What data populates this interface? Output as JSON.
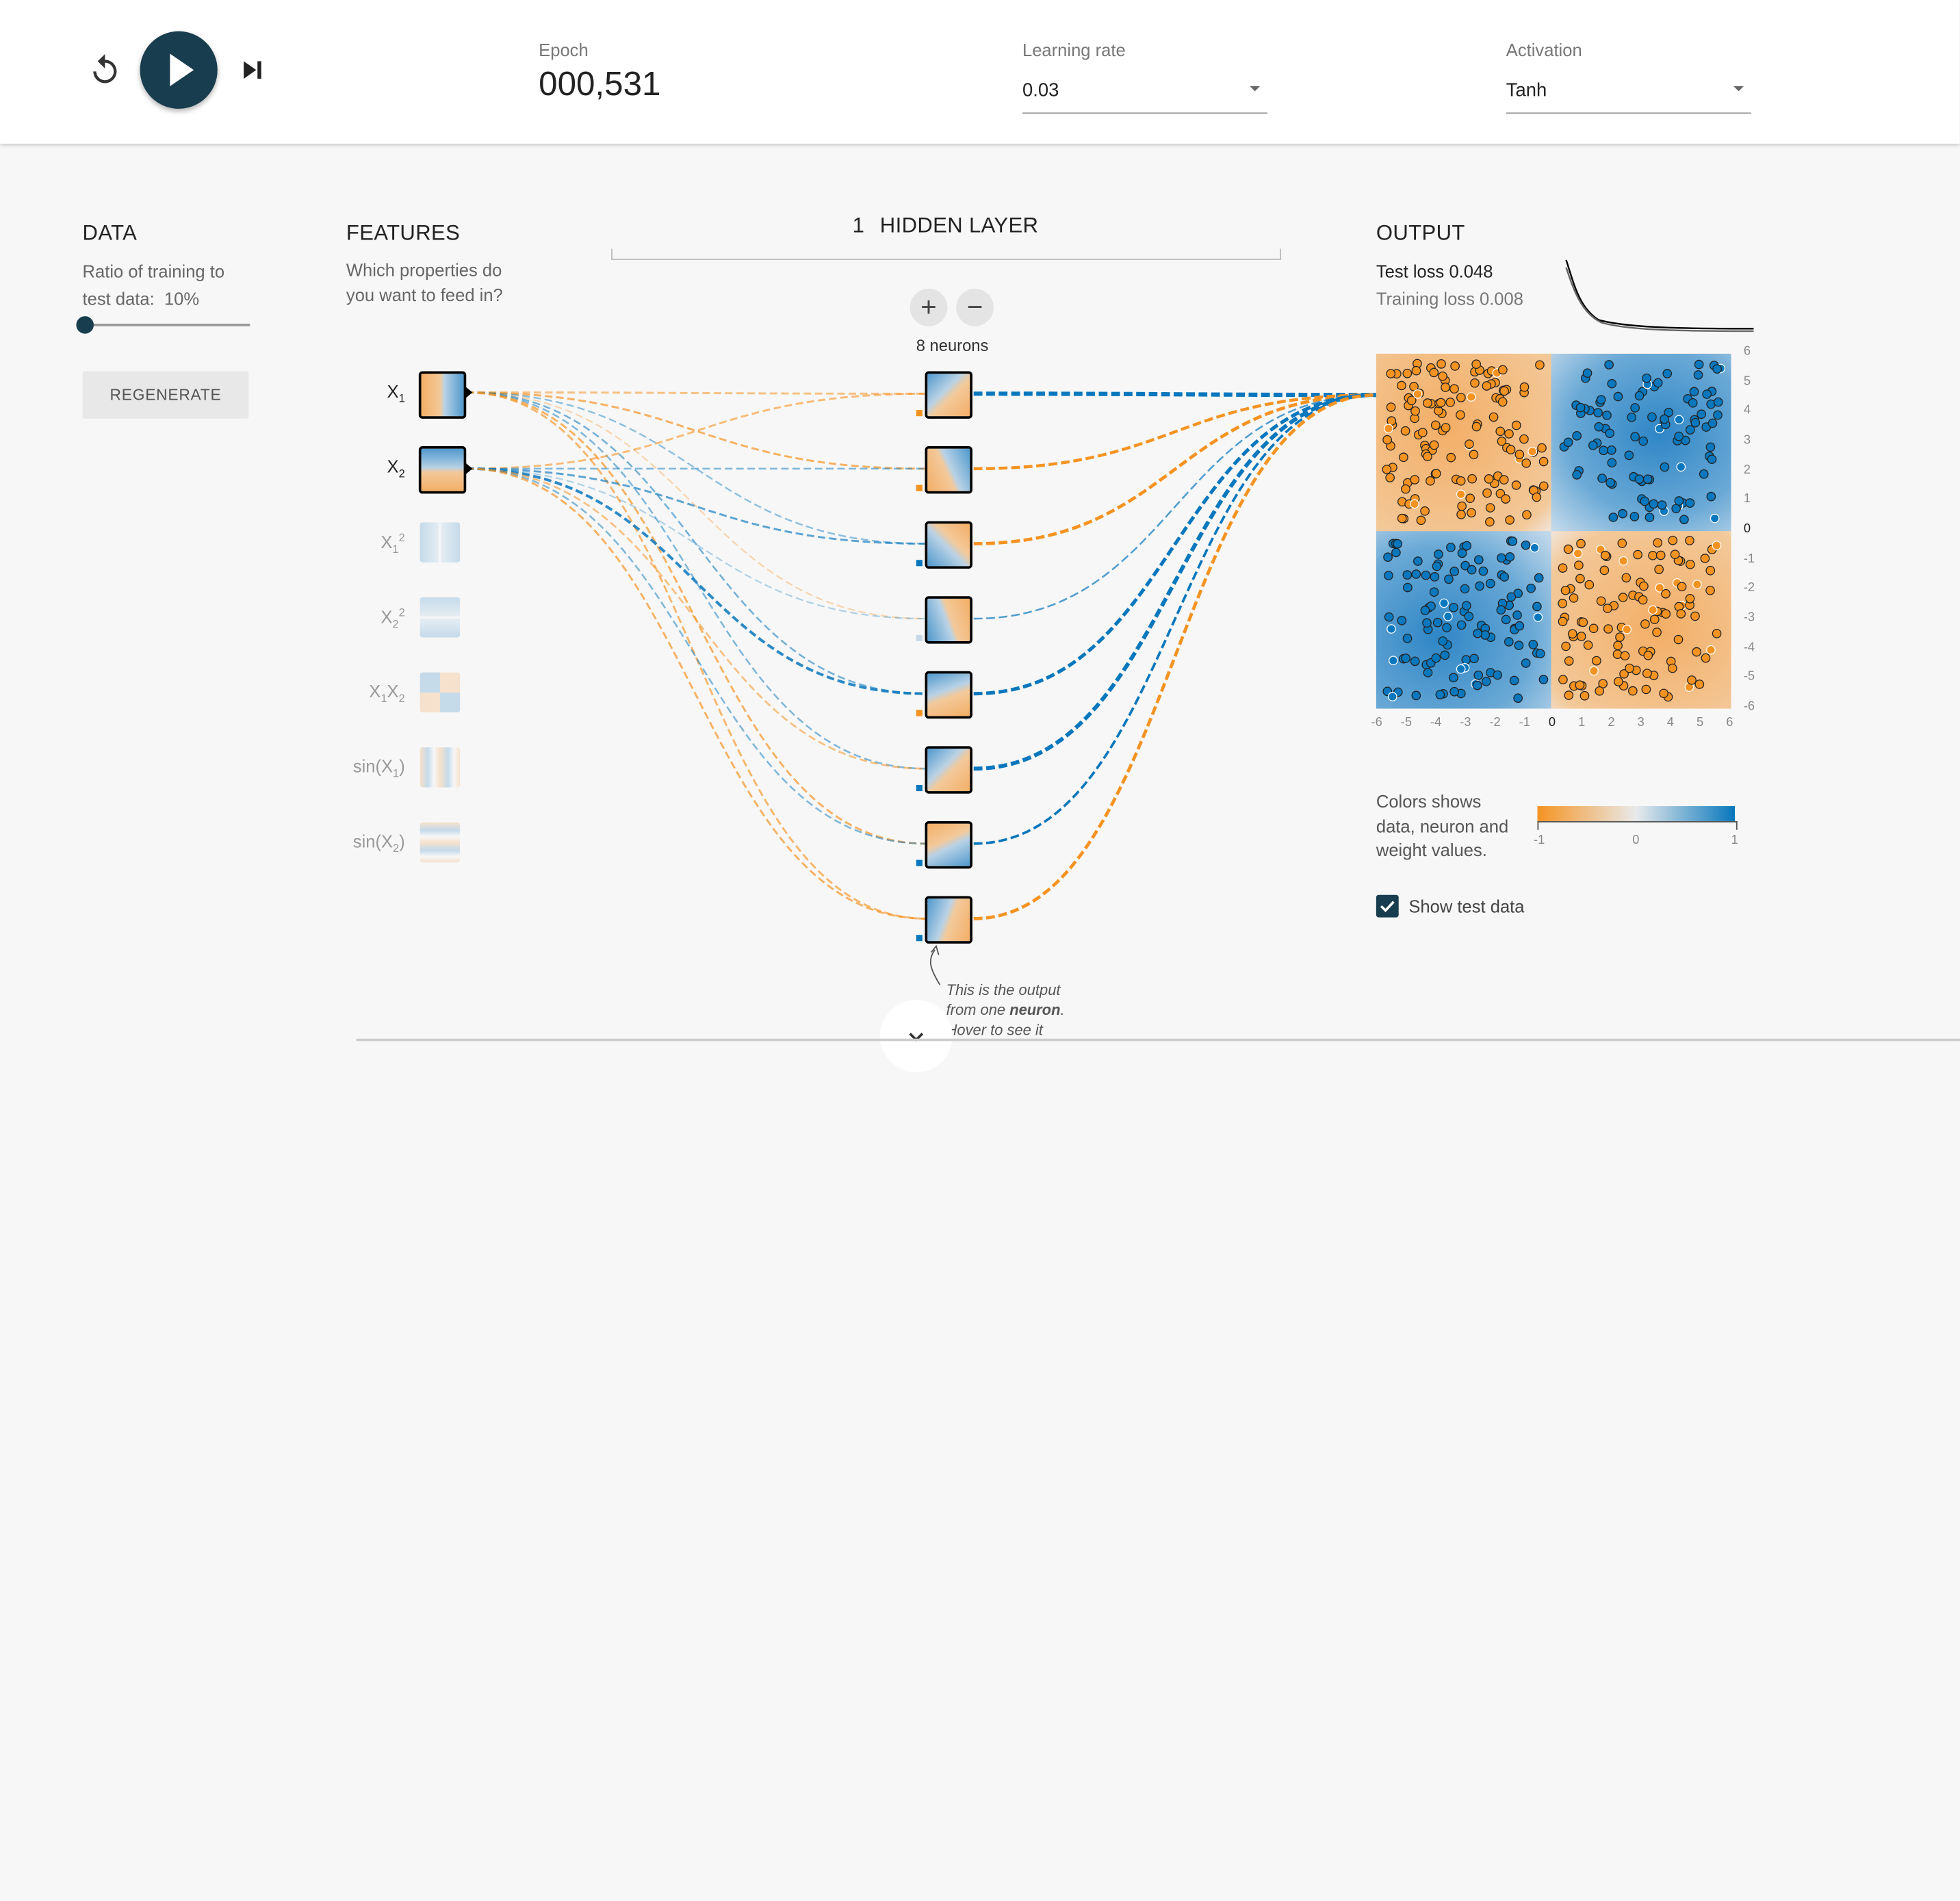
{
  "controls": {
    "reset_icon": "reset-icon",
    "play_icon": "play-icon",
    "step_icon": "step-icon",
    "epoch_label": "Epoch",
    "epoch_value": "000,531",
    "learning_rate_label": "Learning rate",
    "learning_rate_value": "0.03",
    "activation_label": "Activation",
    "activation_value": "Tanh"
  },
  "data_section": {
    "title": "DATA",
    "ratio_line1": "Ratio of training to",
    "ratio_line2": "test data:  10%",
    "ratio_value": 0.1,
    "regenerate_label": "REGENERATE"
  },
  "features_section": {
    "title": "FEATURES",
    "subtitle_line1": "Which properties do",
    "subtitle_line2": "you want to feed in?",
    "items": [
      {
        "label": "X",
        "sub": "1",
        "sup": "",
        "active": true
      },
      {
        "label": "X",
        "sub": "2",
        "sup": "",
        "active": true
      },
      {
        "label": "X",
        "sub": "1",
        "sup": "2",
        "active": false
      },
      {
        "label": "X",
        "sub": "2",
        "sup": "2",
        "active": false
      },
      {
        "label": "X",
        "sub": "1",
        "label2": "X",
        "sub2": "2",
        "active": false
      },
      {
        "label": "sin(X",
        "sub": "1",
        "tail": ")",
        "active": false
      },
      {
        "label": "sin(X",
        "sub": "2",
        "tail": ")",
        "active": false
      }
    ]
  },
  "hidden": {
    "count": "1",
    "title": "HIDDEN LAYER",
    "add_label": "+",
    "remove_label": "−",
    "neurons_label": "8 neurons",
    "tooltip_line1": "This is the output",
    "tooltip_line2_a": "from one ",
    "tooltip_line2_b": "neuron",
    "tooltip_line2_c": ".",
    "tooltip_line3": "Hover to see it"
  },
  "output": {
    "title": "OUTPUT",
    "test_loss_label": "Test loss 0.048",
    "training_loss_label": "Training loss 0.008",
    "x_ticks": [
      "-6",
      "-5",
      "-4",
      "-3",
      "-2",
      "-1",
      "0",
      "1",
      "2",
      "3",
      "4",
      "5",
      "6"
    ],
    "y_ticks": [
      "6",
      "5",
      "4",
      "3",
      "2",
      "1",
      "0",
      "-1",
      "-2",
      "-3",
      "-4",
      "-5",
      "-6"
    ],
    "legend_line1": "Colors shows",
    "legend_line2": "data, neuron and",
    "legend_line3": "weight values.",
    "scale_min": "-1",
    "scale_mid": "0",
    "scale_max": "1",
    "show_test_label": "Show test data",
    "show_test_checked": true
  },
  "colors": {
    "orange": "#f59322",
    "blue": "#0877bd",
    "dark": "#183d4e"
  }
}
